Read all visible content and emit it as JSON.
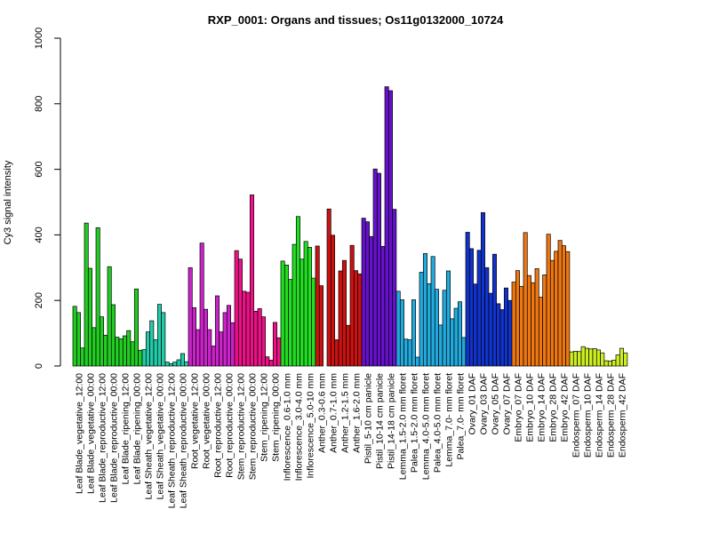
{
  "chart_data": {
    "type": "bar",
    "title": "RXP_0001: Organs and tissues; Os11g0132000_10724",
    "xlabel": "",
    "ylabel": "Cy3 signal intensity",
    "ylim": [
      0,
      1000
    ],
    "yticks": [
      0,
      200,
      400,
      600,
      800,
      1000
    ],
    "grid": false,
    "categories": [
      "Leaf Blade_vegetative_12:00",
      "Leaf Blade_vegetative_00:00",
      "Leaf Blade_reproductive_12:00",
      "Leaf Blade_reproductive_00:00",
      "Leaf Blade_ripening_12:00",
      "Leaf Blade_ripening_00:00",
      "Leaf Sheath_vegetative_12:00",
      "Leaf Sheath_vegetative_00:00",
      "Leaf Sheath_reproductive_12:00",
      "Leaf Sheath_reproductive_00:00",
      "Root_vegetative_12:00",
      "Root_vegetative_00:00",
      "Root_reproductive_12:00",
      "Root_reproductive_00:00",
      "Stem_reproductive_12:00",
      "Stem_reproductive_00:00",
      "Stem_ripening_12:00",
      "Stem_ripening_00:00",
      "Inflorescence_0.6-1.0 mm",
      "Inflorescence_3.0-4.0 mm",
      "Inflorescence_5.0-10 mm",
      "Anther_0.3-0.6 mm",
      "Anther_0.7-1.0 mm",
      "Anther_1.2-1.5 mm",
      "Anther_1.6-2.0 mm",
      "Pistil_5-10 cm panicle",
      "Pistil_10-14 cm panicle",
      "Pistil_14-18 cm panicle",
      "Lemma_1.5-2.0 mm floret",
      "Palea_1.5-2.0 mm floret",
      "Lemma_4.0-5.0 mm floret",
      "Palea_4.0-5.0 mm floret",
      "Lemma_7.0- mm floret",
      "Palea_7.0- mm floret",
      "Ovary_01 DAF",
      "Ovary_03 DAF",
      "Ovary_05 DAF",
      "Ovary_07 DAF",
      "Embryo_07 DAF",
      "Embryo_10 DAF",
      "Embryo_14 DAF",
      "Embryo_28 DAF",
      "Embryo_42 DAF",
      "Endosperm_07 DAF",
      "Endosperm_10 DAF",
      "Endosperm_14 DAF",
      "Endosperm_28 DAF",
      "Endosperm_42 DAF"
    ],
    "colors": [
      "#22cc22",
      "#22cc22",
      "#22cc22",
      "#22cc22",
      "#22cc22",
      "#22cc22",
      "#22ccaa",
      "#22ccaa",
      "#22ccaa",
      "#22ccaa",
      "#cc22cc",
      "#cc22cc",
      "#cc22cc",
      "#cc22cc",
      "#ee1188",
      "#ee1188",
      "#ee1188",
      "#ee1188",
      "#22dd22",
      "#22dd22",
      "#22dd22",
      "#cc1111",
      "#cc1111",
      "#cc1111",
      "#cc1111",
      "#6611cc",
      "#6611cc",
      "#6611cc",
      "#22aadd",
      "#22aadd",
      "#22aadd",
      "#22aadd",
      "#22aadd",
      "#22aadd",
      "#1133cc",
      "#1133cc",
      "#1133cc",
      "#1133cc",
      "#ee7711",
      "#ee7711",
      "#ee7711",
      "#ee7711",
      "#ee7711",
      "#ccee22",
      "#ccee22",
      "#ccee22",
      "#ccee22",
      "#ccee22"
    ],
    "values": [
      [
        182,
        163,
        55
      ],
      [
        436,
        298,
        117
      ],
      [
        422,
        150,
        94
      ],
      [
        303,
        187,
        88
      ],
      [
        83,
        92,
        108
      ],
      [
        74,
        235,
        48
      ],
      [
        50,
        104,
        138
      ],
      [
        80,
        188,
        163
      ],
      [
        12,
        7,
        12
      ],
      [
        19,
        38,
        13
      ],
      [
        300,
        178,
        111
      ],
      [
        375,
        173,
        111
      ],
      [
        61,
        214,
        104
      ],
      [
        163,
        185,
        132
      ],
      [
        352,
        326,
        228
      ],
      [
        225,
        522,
        167
      ],
      [
        175,
        150,
        28
      ],
      [
        18,
        133,
        86
      ],
      [
        320,
        308,
        264
      ],
      [
        371,
        456,
        326
      ],
      [
        380,
        362,
        268
      ],
      [
        366,
        245,
        0
      ],
      [
        479,
        399,
        80
      ],
      [
        290,
        322,
        124
      ],
      [
        368,
        291,
        281
      ],
      [
        451,
        440,
        395
      ],
      [
        601,
        588,
        365
      ],
      [
        852,
        840,
        478
      ],
      [
        228,
        202,
        82
      ],
      [
        80,
        202,
        27
      ],
      [
        286,
        343,
        251
      ],
      [
        334,
        234,
        125
      ],
      [
        231,
        290,
        144
      ],
      [
        176,
        196,
        87
      ],
      [
        408,
        358,
        250
      ],
      [
        353,
        468,
        300
      ],
      [
        222,
        341,
        190
      ],
      [
        172,
        238,
        200
      ],
      [
        256,
        291,
        243
      ],
      [
        407,
        276,
        254
      ],
      [
        297,
        210,
        278
      ],
      [
        402,
        322,
        350
      ],
      [
        383,
        367,
        349
      ],
      [
        43,
        45,
        44
      ],
      [
        59,
        54,
        52
      ],
      [
        53,
        49,
        40
      ],
      [
        16,
        15,
        18
      ],
      [
        34,
        54,
        40
      ]
    ]
  }
}
